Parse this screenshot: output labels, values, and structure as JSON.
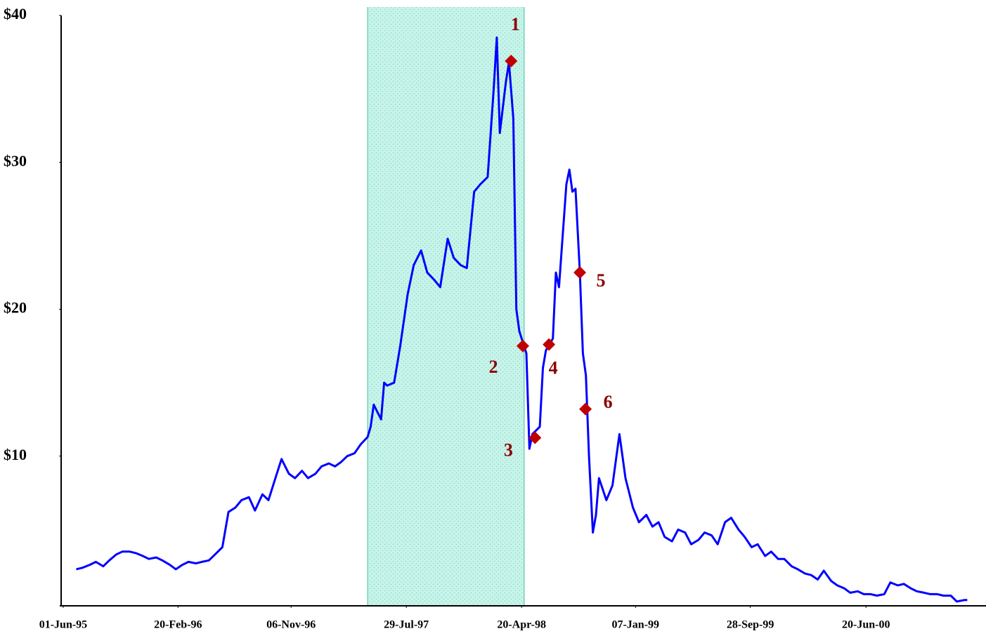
{
  "chart_data": {
    "type": "line",
    "x": [
      "01-Jul-95",
      "15-Jul-95",
      "01-Aug-95",
      "15-Aug-95",
      "01-Sep-95",
      "15-Sep-95",
      "01-Oct-95",
      "15-Oct-95",
      "01-Nov-95",
      "15-Nov-95",
      "01-Dec-95",
      "15-Dec-95",
      "01-Jan-96",
      "15-Jan-96",
      "01-Feb-96",
      "15-Feb-96",
      "01-Mar-96",
      "15-Mar-96",
      "01-Apr-96",
      "15-Apr-96",
      "01-May-96",
      "15-May-96",
      "01-Jun-96",
      "15-Jun-96",
      "01-Jul-96",
      "15-Jul-96",
      "01-Aug-96",
      "15-Aug-96",
      "01-Sep-96",
      "15-Sep-96",
      "01-Oct-96",
      "15-Oct-96",
      "01-Nov-96",
      "15-Nov-96",
      "01-Dec-96",
      "15-Dec-96",
      "01-Jan-97",
      "15-Jan-97",
      "01-Feb-97",
      "15-Feb-97",
      "01-Mar-97",
      "15-Mar-97",
      "01-Apr-97",
      "15-Apr-97",
      "01-May-97",
      "08-May-97",
      "15-May-97",
      "01-Jun-97",
      "08-Jun-97",
      "15-Jun-97",
      "01-Jul-97",
      "15-Jul-97",
      "01-Aug-97",
      "15-Aug-97",
      "01-Sep-97",
      "15-Sep-97",
      "01-Oct-97",
      "15-Oct-97",
      "01-Nov-97",
      "15-Nov-97",
      "01-Dec-97",
      "15-Dec-97",
      "01-Jan-98",
      "15-Jan-98",
      "01-Feb-98",
      "15-Feb-98",
      "22-Feb-98",
      "01-Mar-98",
      "15-Mar-98",
      "22-Mar-98",
      "01-Apr-98",
      "08-Apr-98",
      "15-Apr-98",
      "01-May-98",
      "08-May-98",
      "15-May-98",
      "01-Jun-98",
      "08-Jun-98",
      "15-Jun-98",
      "01-Jul-98",
      "08-Jul-98",
      "15-Jul-98",
      "01-Aug-98",
      "08-Aug-98",
      "15-Aug-98",
      "22-Aug-98",
      "01-Sep-98",
      "08-Sep-98",
      "15-Sep-98",
      "22-Sep-98",
      "01-Oct-98",
      "08-Oct-98",
      "15-Oct-98",
      "01-Nov-98",
      "15-Nov-98",
      "01-Dec-98",
      "15-Dec-98",
      "01-Jan-99",
      "15-Jan-99",
      "01-Feb-99",
      "15-Feb-99",
      "01-Mar-99",
      "15-Mar-99",
      "01-Apr-99",
      "15-Apr-99",
      "01-May-99",
      "15-May-99",
      "01-Jun-99",
      "15-Jun-99",
      "01-Jul-99",
      "15-Jul-99",
      "01-Aug-99",
      "15-Aug-99",
      "01-Sep-99",
      "15-Sep-99",
      "01-Oct-99",
      "15-Oct-99",
      "01-Nov-99",
      "15-Nov-99",
      "01-Dec-99",
      "15-Dec-99",
      "01-Jan-00",
      "15-Jan-00",
      "01-Feb-00",
      "15-Feb-00",
      "01-Mar-00",
      "15-Mar-00",
      "01-Apr-00",
      "15-Apr-00",
      "01-May-00",
      "15-May-00",
      "01-Jun-00",
      "15-Jun-00",
      "01-Jul-00",
      "15-Jul-00",
      "01-Aug-00",
      "15-Aug-00",
      "01-Sep-00",
      "15-Sep-00",
      "01-Oct-00",
      "15-Oct-00",
      "01-Nov-00",
      "15-Nov-00",
      "01-Dec-00",
      "15-Dec-00",
      "01-Jan-01",
      "15-Jan-01",
      "01-Feb-01",
      "08-Feb-01"
    ],
    "series": [
      {
        "color": "#0000ff",
        "values": [
          2.3,
          2.4,
          2.6,
          2.8,
          2.5,
          2.9,
          3.3,
          3.5,
          3.5,
          3.4,
          3.2,
          3.0,
          3.1,
          2.9,
          2.6,
          2.3,
          2.6,
          2.8,
          2.7,
          2.8,
          2.9,
          3.3,
          3.8,
          6.2,
          6.5,
          7.0,
          7.2,
          6.3,
          7.4,
          7.0,
          8.5,
          9.8,
          8.8,
          8.5,
          9.0,
          8.5,
          8.8,
          9.3,
          9.5,
          9.3,
          9.6,
          10.0,
          10.2,
          10.8,
          11.3,
          12.0,
          13.5,
          12.5,
          15.0,
          14.8,
          15.0,
          17.5,
          21.0,
          23.0,
          24.0,
          22.5,
          22.0,
          21.5,
          24.8,
          23.5,
          23.0,
          22.8,
          28.0,
          28.5,
          29.0,
          35.0,
          38.5,
          32.0,
          35.5,
          36.8,
          33.0,
          20.0,
          18.5,
          17.0,
          10.5,
          11.5,
          12.0,
          16.0,
          17.2,
          18.0,
          22.5,
          21.5,
          28.5,
          29.5,
          28.0,
          28.2,
          22.5,
          17.0,
          15.5,
          10.0,
          4.8,
          6.0,
          8.5,
          7.0,
          8.0,
          11.5,
          8.5,
          6.5,
          5.5,
          6.0,
          5.2,
          5.5,
          4.5,
          4.2,
          5.0,
          4.8,
          4.0,
          4.3,
          4.8,
          4.6,
          4.0,
          5.5,
          5.8,
          5.0,
          4.5,
          3.8,
          4.0,
          3.2,
          3.5,
          3.0,
          3.0,
          2.5,
          2.3,
          2.0,
          1.9,
          1.6,
          2.2,
          1.5,
          1.2,
          1.0,
          0.7,
          0.8,
          0.6,
          0.6,
          0.5,
          0.6,
          1.4,
          1.2,
          1.3,
          1.0,
          0.8,
          0.7,
          0.6,
          0.6,
          0.5,
          0.5,
          0.1,
          0.2,
          0.2
        ]
      }
    ],
    "markers": {
      "color": "#c00000",
      "labels": [
        "1",
        "2",
        "3",
        "4",
        "5",
        "6"
      ],
      "x": [
        "27-Mar-98",
        "23-Apr-98",
        "21-May-98",
        "22-Jun-98",
        "01-Sep-98",
        "14-Sep-98"
      ],
      "values": [
        36.9,
        17.5,
        11.25,
        17.6,
        22.5,
        13.2
      ]
    },
    "shaded_region": [
      "01-May-97",
      "26-Apr-98"
    ],
    "xlim": [
      "24-May-95",
      "23-Mar-01"
    ],
    "xticks": [
      "01-Jun-95",
      "20-Feb-96",
      "06-Nov-96",
      "29-Jul-97",
      "20-Apr-98",
      "07-Jan-99",
      "28-Sep-99",
      "20-Jun-00"
    ],
    "ylim": [
      0,
      40
    ],
    "yticks": [
      {
        "value": 10,
        "label": "$10"
      },
      {
        "value": 20,
        "label": "$20"
      },
      {
        "value": 30,
        "label": "$30"
      },
      {
        "value": 40,
        "label": "$40"
      }
    ],
    "grid": false
  }
}
